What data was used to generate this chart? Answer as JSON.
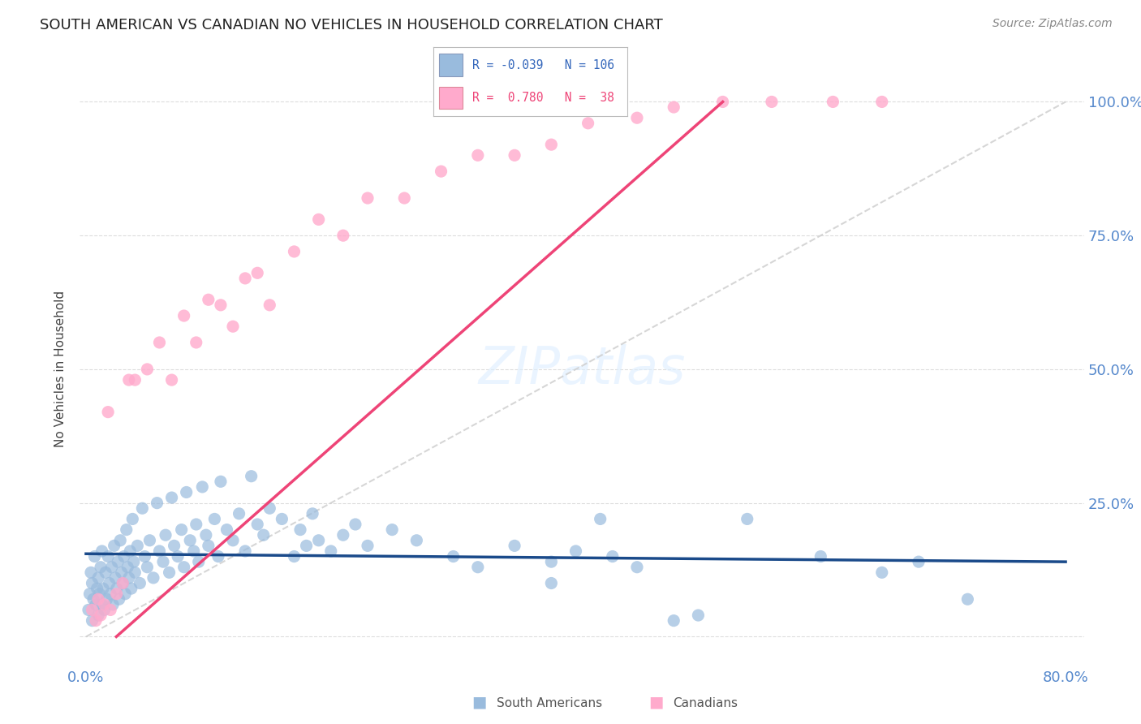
{
  "title": "SOUTH AMERICAN VS CANADIAN NO VEHICLES IN HOUSEHOLD CORRELATION CHART",
  "source": "Source: ZipAtlas.com",
  "ylabel": "No Vehicles in Household",
  "blue_color": "#99BBDD",
  "pink_color": "#FFAACC",
  "blue_line_color": "#1A4A8A",
  "pink_line_color": "#EE4477",
  "diagonal_color": "#CCCCCC",
  "legend_blue_R": "-0.039",
  "legend_blue_N": "106",
  "legend_pink_R": "0.780",
  "legend_pink_N": "38",
  "xlim": [
    0.0,
    0.8
  ],
  "ylim": [
    0.0,
    1.0
  ],
  "blue_R": -0.039,
  "pink_R": 0.78,
  "blue_N": 106,
  "pink_N": 38,
  "sa_x": [
    0.002,
    0.003,
    0.004,
    0.005,
    0.005,
    0.006,
    0.007,
    0.008,
    0.009,
    0.01,
    0.01,
    0.011,
    0.012,
    0.013,
    0.013,
    0.014,
    0.015,
    0.016,
    0.017,
    0.018,
    0.019,
    0.02,
    0.021,
    0.022,
    0.023,
    0.024,
    0.025,
    0.026,
    0.027,
    0.028,
    0.029,
    0.03,
    0.031,
    0.032,
    0.033,
    0.034,
    0.035,
    0.036,
    0.037,
    0.038,
    0.039,
    0.04,
    0.042,
    0.044,
    0.046,
    0.048,
    0.05,
    0.052,
    0.055,
    0.058,
    0.06,
    0.063,
    0.065,
    0.068,
    0.07,
    0.072,
    0.075,
    0.078,
    0.08,
    0.082,
    0.085,
    0.088,
    0.09,
    0.092,
    0.095,
    0.098,
    0.1,
    0.105,
    0.108,
    0.11,
    0.115,
    0.12,
    0.125,
    0.13,
    0.135,
    0.14,
    0.145,
    0.15,
    0.16,
    0.17,
    0.175,
    0.18,
    0.185,
    0.19,
    0.2,
    0.21,
    0.22,
    0.23,
    0.25,
    0.27,
    0.3,
    0.32,
    0.35,
    0.38,
    0.4,
    0.43,
    0.45,
    0.5,
    0.54,
    0.6,
    0.65,
    0.68,
    0.72,
    0.42,
    0.48,
    0.38
  ],
  "sa_y": [
    0.05,
    0.08,
    0.12,
    0.03,
    0.1,
    0.07,
    0.15,
    0.06,
    0.09,
    0.04,
    0.11,
    0.08,
    0.13,
    0.06,
    0.16,
    0.09,
    0.05,
    0.12,
    0.07,
    0.15,
    0.1,
    0.08,
    0.13,
    0.06,
    0.17,
    0.11,
    0.09,
    0.14,
    0.07,
    0.18,
    0.12,
    0.1,
    0.15,
    0.08,
    0.2,
    0.13,
    0.11,
    0.16,
    0.09,
    0.22,
    0.14,
    0.12,
    0.17,
    0.1,
    0.24,
    0.15,
    0.13,
    0.18,
    0.11,
    0.25,
    0.16,
    0.14,
    0.19,
    0.12,
    0.26,
    0.17,
    0.15,
    0.2,
    0.13,
    0.27,
    0.18,
    0.16,
    0.21,
    0.14,
    0.28,
    0.19,
    0.17,
    0.22,
    0.15,
    0.29,
    0.2,
    0.18,
    0.23,
    0.16,
    0.3,
    0.21,
    0.19,
    0.24,
    0.22,
    0.15,
    0.2,
    0.17,
    0.23,
    0.18,
    0.16,
    0.19,
    0.21,
    0.17,
    0.2,
    0.18,
    0.15,
    0.13,
    0.17,
    0.14,
    0.16,
    0.15,
    0.13,
    0.04,
    0.22,
    0.15,
    0.12,
    0.14,
    0.07,
    0.22,
    0.03,
    0.1
  ],
  "ca_x": [
    0.005,
    0.008,
    0.01,
    0.012,
    0.015,
    0.018,
    0.02,
    0.025,
    0.03,
    0.035,
    0.04,
    0.05,
    0.06,
    0.07,
    0.08,
    0.09,
    0.1,
    0.11,
    0.12,
    0.13,
    0.14,
    0.15,
    0.17,
    0.19,
    0.21,
    0.23,
    0.26,
    0.29,
    0.32,
    0.35,
    0.38,
    0.41,
    0.45,
    0.48,
    0.52,
    0.56,
    0.61,
    0.65
  ],
  "ca_y": [
    0.05,
    0.03,
    0.07,
    0.04,
    0.06,
    0.42,
    0.05,
    0.08,
    0.1,
    0.48,
    0.48,
    0.5,
    0.55,
    0.48,
    0.6,
    0.55,
    0.63,
    0.62,
    0.58,
    0.67,
    0.68,
    0.62,
    0.72,
    0.78,
    0.75,
    0.82,
    0.82,
    0.87,
    0.9,
    0.9,
    0.92,
    0.96,
    0.97,
    0.99,
    1.0,
    1.0,
    1.0,
    1.0
  ]
}
